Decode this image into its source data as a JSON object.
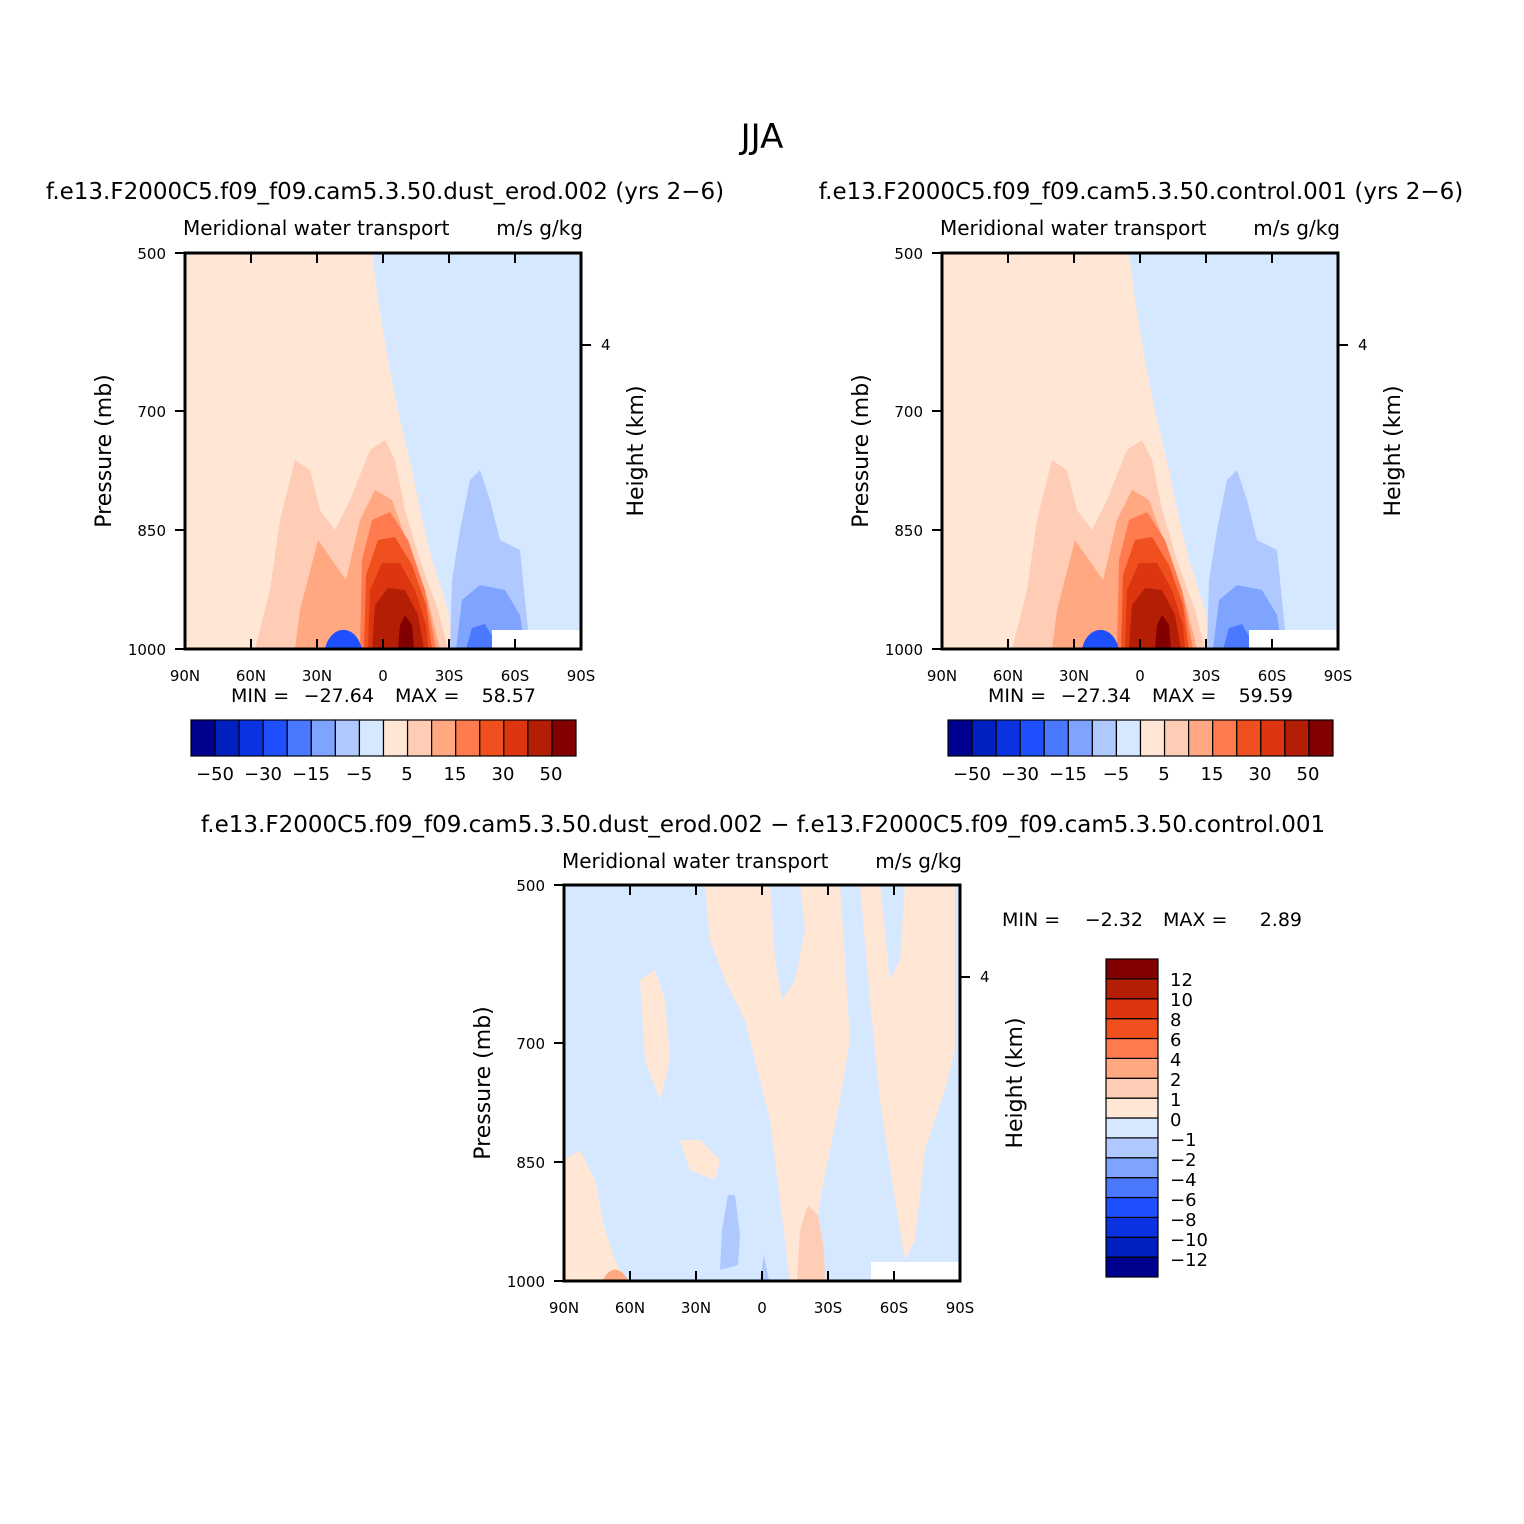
{
  "figure": {
    "title": "JJA"
  },
  "colors": {
    "diverging_16": [
      "#00008f",
      "#0020c0",
      "#0a32e0",
      "#1e50ff",
      "#4a78ff",
      "#7fa4ff",
      "#afc8ff",
      "#d6e8ff",
      "#ffe6d5",
      "#ffcdb5",
      "#ffa882",
      "#ff7b4f",
      "#f0501e",
      "#dc3510",
      "#b41e05",
      "#820000"
    ],
    "missing": "#ffffff"
  },
  "chart_data": [
    {
      "type": "heatmap",
      "title": "f.e13.F2000C5.f09_f09.cam5.3.50.dust_erod.002 (yrs 2−6)",
      "subtitle_left": "Meridional water transport",
      "subtitle_right": "m/s g/kg",
      "ylabel": "Pressure (mb)",
      "ylabel_right": "Height (km)",
      "x_ticklabels": [
        "90N",
        "60N",
        "30N",
        "0",
        "30S",
        "60S",
        "90S"
      ],
      "y_ticklabels": [
        "500",
        "700",
        "850",
        "1000"
      ],
      "y_right_ticklabels": [
        "4"
      ],
      "xlim": [
        90,
        -90
      ],
      "ylim": [
        1000,
        500
      ],
      "min_label": "MIN =",
      "min_value": "−27.64",
      "max_label": "MAX =",
      "max_value": "58.57",
      "levels": [
        -50,
        -40,
        -30,
        -20,
        -15,
        -10,
        -5,
        0,
        5,
        10,
        15,
        20,
        30,
        40,
        50
      ],
      "colorbar_labels": [
        "−50",
        "−30",
        "−15",
        "−5",
        "5",
        "15",
        "30",
        "50"
      ]
    },
    {
      "type": "heatmap",
      "title": "f.e13.F2000C5.f09_f09.cam5.3.50.control.001 (yrs 2−6)",
      "subtitle_left": "Meridional water transport",
      "subtitle_right": "m/s g/kg",
      "ylabel": "Pressure (mb)",
      "ylabel_right": "Height (km)",
      "x_ticklabels": [
        "90N",
        "60N",
        "30N",
        "0",
        "30S",
        "60S",
        "90S"
      ],
      "y_ticklabels": [
        "500",
        "700",
        "850",
        "1000"
      ],
      "y_right_ticklabels": [
        "4"
      ],
      "xlim": [
        90,
        -90
      ],
      "ylim": [
        1000,
        500
      ],
      "min_label": "MIN =",
      "min_value": "−27.34",
      "max_label": "MAX =",
      "max_value": "59.59",
      "levels": [
        -50,
        -40,
        -30,
        -20,
        -15,
        -10,
        -5,
        0,
        5,
        10,
        15,
        20,
        30,
        40,
        50
      ],
      "colorbar_labels": [
        "−50",
        "−30",
        "−15",
        "−5",
        "5",
        "15",
        "30",
        "50"
      ]
    },
    {
      "type": "heatmap",
      "title": "f.e13.F2000C5.f09_f09.cam5.3.50.dust_erod.002 − f.e13.F2000C5.f09_f09.cam5.3.50.control.001",
      "subtitle_left": "Meridional water transport",
      "subtitle_right": "m/s g/kg",
      "ylabel": "Pressure (mb)",
      "ylabel_right": "Height (km)",
      "x_ticklabels": [
        "90N",
        "60N",
        "30N",
        "0",
        "30S",
        "60S",
        "90S"
      ],
      "y_ticklabels": [
        "500",
        "700",
        "850",
        "1000"
      ],
      "y_right_ticklabels": [
        "4"
      ],
      "xlim": [
        90,
        -90
      ],
      "ylim": [
        1000,
        500
      ],
      "min_label": "MIN =",
      "min_value": "−2.32",
      "max_label": "MAX =",
      "max_value": "2.89",
      "levels": [
        -12,
        -10,
        -8,
        -6,
        -4,
        -2,
        -1,
        0,
        1,
        2,
        4,
        6,
        8,
        10,
        12
      ],
      "colorbar_labels": [
        "12",
        "10",
        "8",
        "6",
        "4",
        "2",
        "1",
        "0",
        "−1",
        "−2",
        "−4",
        "−6",
        "−8",
        "−10",
        "−12"
      ]
    }
  ]
}
